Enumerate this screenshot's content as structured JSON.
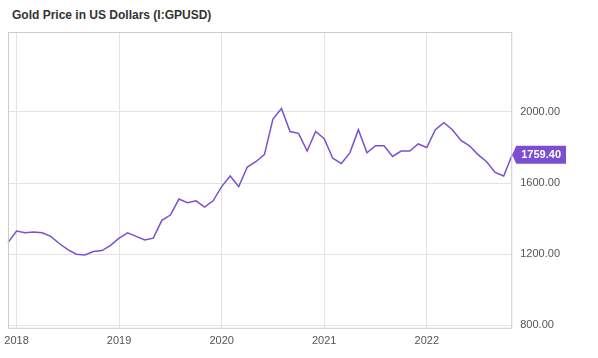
{
  "chart_data": {
    "type": "line",
    "title": "Gold Price in US Dollars (I:GPUSD)",
    "categories": [
      null,
      "2018",
      null,
      null,
      null,
      null,
      null,
      null,
      null,
      null,
      null,
      null,
      null,
      "2019",
      null,
      null,
      null,
      null,
      null,
      null,
      null,
      null,
      null,
      null,
      null,
      "2020",
      null,
      null,
      null,
      null,
      null,
      null,
      null,
      null,
      null,
      null,
      null,
      "2021",
      null,
      null,
      null,
      null,
      null,
      null,
      null,
      null,
      null,
      null,
      null,
      "2022",
      null,
      null,
      null,
      null,
      null,
      null,
      null,
      null,
      null,
      null
    ],
    "values": [
      1265,
      1330,
      1320,
      1325,
      1320,
      1300,
      1260,
      1225,
      1200,
      1195,
      1215,
      1220,
      1250,
      1290,
      1320,
      1300,
      1280,
      1290,
      1390,
      1420,
      1510,
      1490,
      1500,
      1465,
      1500,
      1580,
      1640,
      1580,
      1690,
      1720,
      1760,
      1960,
      2020,
      1890,
      1880,
      1780,
      1890,
      1850,
      1740,
      1710,
      1770,
      1900,
      1770,
      1810,
      1810,
      1750,
      1780,
      1780,
      1820,
      1800,
      1900,
      1940,
      1900,
      1840,
      1810,
      1760,
      1720,
      1660,
      1640,
      1759.4
    ],
    "color": "#7b4fd0",
    "ylim": [
      780,
      2450
    ],
    "yticks": [
      {
        "value": 800,
        "label": "800.00"
      },
      {
        "value": 1200,
        "label": "1200.00"
      },
      {
        "value": 1600,
        "label": "1600.00"
      },
      {
        "value": 2000,
        "label": "2000.00"
      }
    ],
    "annotations": [
      {
        "text": "1759.40",
        "value": 1759.4
      }
    ],
    "grid": true
  }
}
